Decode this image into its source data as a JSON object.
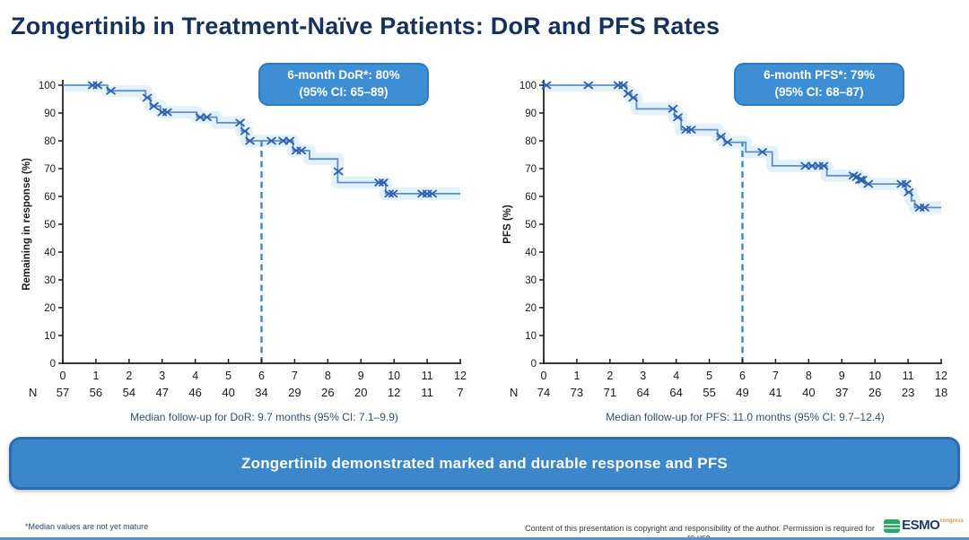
{
  "title": "Zongertinib in Treatment-Naïve Patients: DoR and PFS Rates",
  "banner": "Zongertinib demonstrated marked and durable response and PFS",
  "footnote": "*Median values are not yet mature",
  "copyright": "Content of this presentation is copyright and responsibility of the author. Permission is required for re-use.",
  "logo": {
    "wordmark": "ESMO",
    "superscript": "congress"
  },
  "colors": {
    "title_navy": "#16325c",
    "accent_blue": "#3c86cc",
    "curve": "#5b8fc9",
    "censor": "#2d5fb0",
    "ci_band": "#d9ecf8",
    "axis": "#1a1a1a"
  },
  "chart_data": [
    {
      "type": "line",
      "subtype": "kaplan-meier",
      "annotation": {
        "line1": "6-month DoR*: 80%",
        "line2": "(95% CI: 65–89)"
      },
      "ylabel": "Remaining in response (%)",
      "xlim": [
        0,
        12
      ],
      "ylim": [
        0,
        100
      ],
      "xticks": [
        0,
        1,
        2,
        3,
        4,
        5,
        6,
        7,
        8,
        9,
        10,
        11,
        12
      ],
      "yticks": [
        0,
        10,
        20,
        30,
        40,
        50,
        60,
        70,
        80,
        90,
        100
      ],
      "steps": [
        [
          0,
          100
        ],
        [
          1.35,
          98
        ],
        [
          2.5,
          95.5
        ],
        [
          2.65,
          92.5
        ],
        [
          2.95,
          90.3
        ],
        [
          4.05,
          88.5
        ],
        [
          4.65,
          86.5
        ],
        [
          5.4,
          83.5
        ],
        [
          5.55,
          80
        ],
        [
          6.95,
          76.5
        ],
        [
          7.45,
          73.5
        ],
        [
          8.3,
          65
        ],
        [
          9.75,
          61
        ],
        [
          12,
          61
        ]
      ],
      "censors": [
        [
          0.9,
          100
        ],
        [
          1.05,
          100
        ],
        [
          1.45,
          98
        ],
        [
          2.55,
          95.5
        ],
        [
          2.75,
          92.5
        ],
        [
          3.0,
          90.3
        ],
        [
          3.15,
          90.3
        ],
        [
          4.15,
          88.5
        ],
        [
          4.35,
          88.5
        ],
        [
          5.35,
          86.5
        ],
        [
          5.5,
          83.5
        ],
        [
          5.65,
          80
        ],
        [
          6.3,
          80
        ],
        [
          6.65,
          80
        ],
        [
          6.85,
          80
        ],
        [
          7.05,
          76.5
        ],
        [
          7.2,
          76.5
        ],
        [
          8.32,
          69
        ],
        [
          9.55,
          65
        ],
        [
          9.68,
          65
        ],
        [
          9.85,
          61
        ],
        [
          9.97,
          61
        ],
        [
          10.85,
          61
        ],
        [
          11.0,
          61
        ],
        [
          11.15,
          61
        ]
      ],
      "dashed_line": {
        "x": 6,
        "top": 80
      },
      "risk_label": "N",
      "risk_counts": [
        57,
        56,
        54,
        47,
        46,
        40,
        34,
        29,
        26,
        20,
        12,
        11,
        7
      ],
      "caption": "Median follow-up for DoR: 9.7 months (95% CI: 7.1–9.9)"
    },
    {
      "type": "line",
      "subtype": "kaplan-meier",
      "annotation": {
        "line1": "6-month PFS*: 79%",
        "line2": "(95% CI: 68–87)"
      },
      "ylabel": "PFS (%)",
      "xlim": [
        0,
        12
      ],
      "ylim": [
        0,
        100
      ],
      "xticks": [
        0,
        1,
        2,
        3,
        4,
        5,
        6,
        7,
        8,
        9,
        10,
        11,
        12
      ],
      "yticks": [
        0,
        10,
        20,
        30,
        40,
        50,
        60,
        70,
        80,
        90,
        100
      ],
      "steps": [
        [
          0,
          100
        ],
        [
          2.5,
          97
        ],
        [
          2.65,
          95.5
        ],
        [
          2.8,
          91.5
        ],
        [
          3.95,
          88.5
        ],
        [
          4.15,
          84
        ],
        [
          5.25,
          81.5
        ],
        [
          5.45,
          79.5
        ],
        [
          6.1,
          76
        ],
        [
          6.9,
          71
        ],
        [
          8.55,
          67.5
        ],
        [
          9.5,
          66
        ],
        [
          9.7,
          64.5
        ],
        [
          10.95,
          61.5
        ],
        [
          11.1,
          58.5
        ],
        [
          11.2,
          56
        ],
        [
          12,
          56
        ]
      ],
      "censors": [
        [
          0.08,
          100
        ],
        [
          1.35,
          100
        ],
        [
          2.25,
          100
        ],
        [
          2.4,
          100
        ],
        [
          2.55,
          97
        ],
        [
          2.7,
          95.5
        ],
        [
          3.9,
          91.5
        ],
        [
          4.05,
          88.5
        ],
        [
          4.3,
          84
        ],
        [
          4.45,
          84
        ],
        [
          5.35,
          81.5
        ],
        [
          5.55,
          79.5
        ],
        [
          6.6,
          76
        ],
        [
          7.9,
          71
        ],
        [
          8.1,
          71
        ],
        [
          8.3,
          71
        ],
        [
          8.45,
          71
        ],
        [
          9.35,
          67.5
        ],
        [
          9.45,
          67
        ],
        [
          9.55,
          66
        ],
        [
          9.62,
          66
        ],
        [
          9.8,
          64.5
        ],
        [
          10.8,
          64.5
        ],
        [
          10.95,
          64.5
        ],
        [
          11.02,
          61.5
        ],
        [
          11.35,
          56
        ],
        [
          11.5,
          56
        ]
      ],
      "dashed_line": {
        "x": 6,
        "top": 79.5
      },
      "risk_label": "N",
      "risk_counts": [
        74,
        73,
        71,
        64,
        64,
        55,
        49,
        41,
        40,
        37,
        26,
        23,
        18
      ],
      "caption": "Median follow-up for PFS: 11.0 months (95% CI: 9.7–12.4)"
    }
  ]
}
